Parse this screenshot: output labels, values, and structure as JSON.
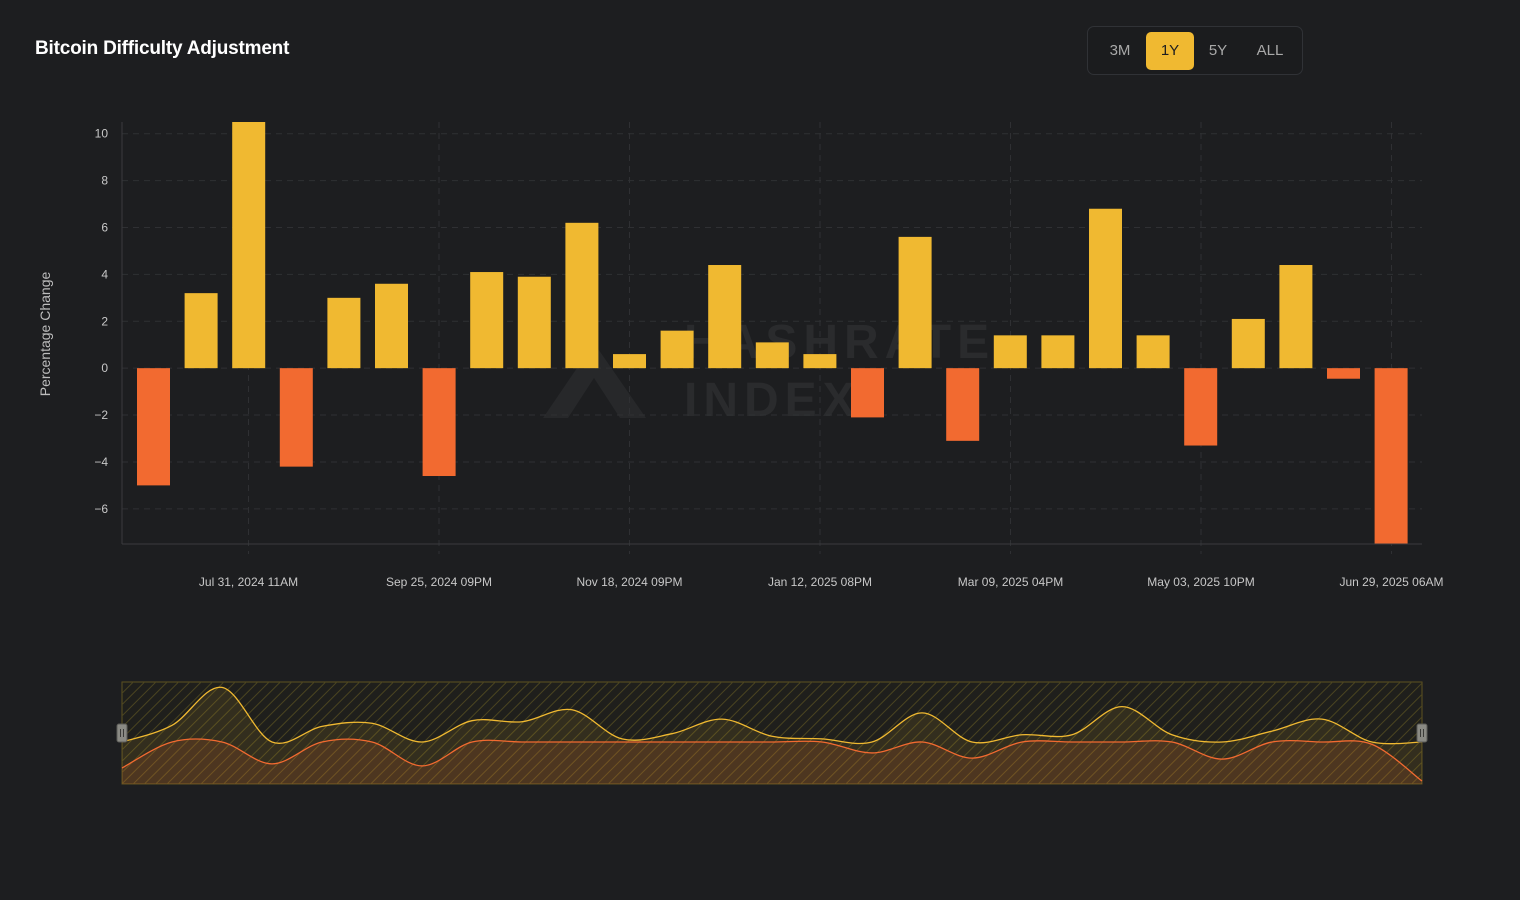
{
  "header": {
    "title": "Bitcoin Difficulty Adjustment"
  },
  "range_selector": {
    "options": [
      "3M",
      "1Y",
      "5Y",
      "ALL"
    ],
    "selected": "1Y"
  },
  "watermark": {
    "line1": "HASHRATE",
    "line2": "INDEX"
  },
  "colors": {
    "positive": "#f0b931",
    "negative": "#f26a30",
    "background": "#1d1e20",
    "grid": "#2f3033"
  },
  "chart_data": {
    "type": "bar",
    "ylabel": "Percentage Change",
    "xlabel": "",
    "ylim": [
      -7.5,
      10.5
    ],
    "yticks": [
      10,
      8,
      6,
      4,
      2,
      0,
      -2,
      -4,
      -6
    ],
    "grid": true,
    "x_tick_labels": [
      "Jul 31, 2024 11AM",
      "Sep 25, 2024 09PM",
      "Nov 18, 2024 09PM",
      "Jan 12, 2025 08PM",
      "Mar 09, 2025 04PM",
      "May 03, 2025 10PM",
      "Jun 29, 2025 06AM"
    ],
    "values": [
      -5.0,
      3.2,
      10.5,
      -4.2,
      3.0,
      3.6,
      -4.6,
      4.1,
      3.9,
      6.2,
      0.6,
      1.6,
      4.4,
      1.1,
      0.6,
      -2.1,
      5.6,
      -3.1,
      1.4,
      1.4,
      6.8,
      1.4,
      -3.3,
      2.1,
      4.4,
      -0.45,
      -7.5
    ],
    "navigator": true
  }
}
